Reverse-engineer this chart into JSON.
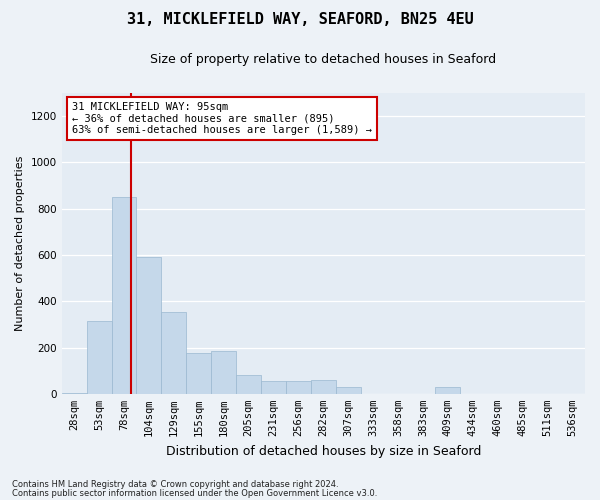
{
  "title_line1": "31, MICKLEFIELD WAY, SEAFORD, BN25 4EU",
  "title_line2": "Size of property relative to detached houses in Seaford",
  "xlabel": "Distribution of detached houses by size in Seaford",
  "ylabel": "Number of detached properties",
  "bar_labels": [
    "28sqm",
    "53sqm",
    "78sqm",
    "104sqm",
    "129sqm",
    "155sqm",
    "180sqm",
    "205sqm",
    "231sqm",
    "256sqm",
    "282sqm",
    "307sqm",
    "333sqm",
    "358sqm",
    "383sqm",
    "409sqm",
    "434sqm",
    "460sqm",
    "485sqm",
    "511sqm",
    "536sqm"
  ],
  "bar_heights": [
    5,
    315,
    850,
    590,
    355,
    175,
    185,
    80,
    55,
    55,
    60,
    30,
    0,
    0,
    0,
    30,
    0,
    0,
    0,
    0,
    0
  ],
  "bar_color": "#c5d8ea",
  "bar_edge_color": "#9ab8d0",
  "ylim": [
    0,
    1300
  ],
  "yticks": [
    0,
    200,
    400,
    600,
    800,
    1000,
    1200
  ],
  "vline_x": 2.3,
  "vline_color": "#cc0000",
  "annotation_text": "31 MICKLEFIELD WAY: 95sqm\n← 36% of detached houses are smaller (895)\n63% of semi-detached houses are larger (1,589) →",
  "annotation_box_color": "#ffffff",
  "annotation_box_edge": "#cc0000",
  "footnote1": "Contains HM Land Registry data © Crown copyright and database right 2024.",
  "footnote2": "Contains public sector information licensed under the Open Government Licence v3.0.",
  "bg_color": "#edf2f7",
  "plot_bg_color": "#e4ecf4",
  "title1_fontsize": 11,
  "title2_fontsize": 9,
  "ylabel_fontsize": 8,
  "xlabel_fontsize": 9,
  "tick_fontsize": 7.5,
  "annot_fontsize": 7.5
}
